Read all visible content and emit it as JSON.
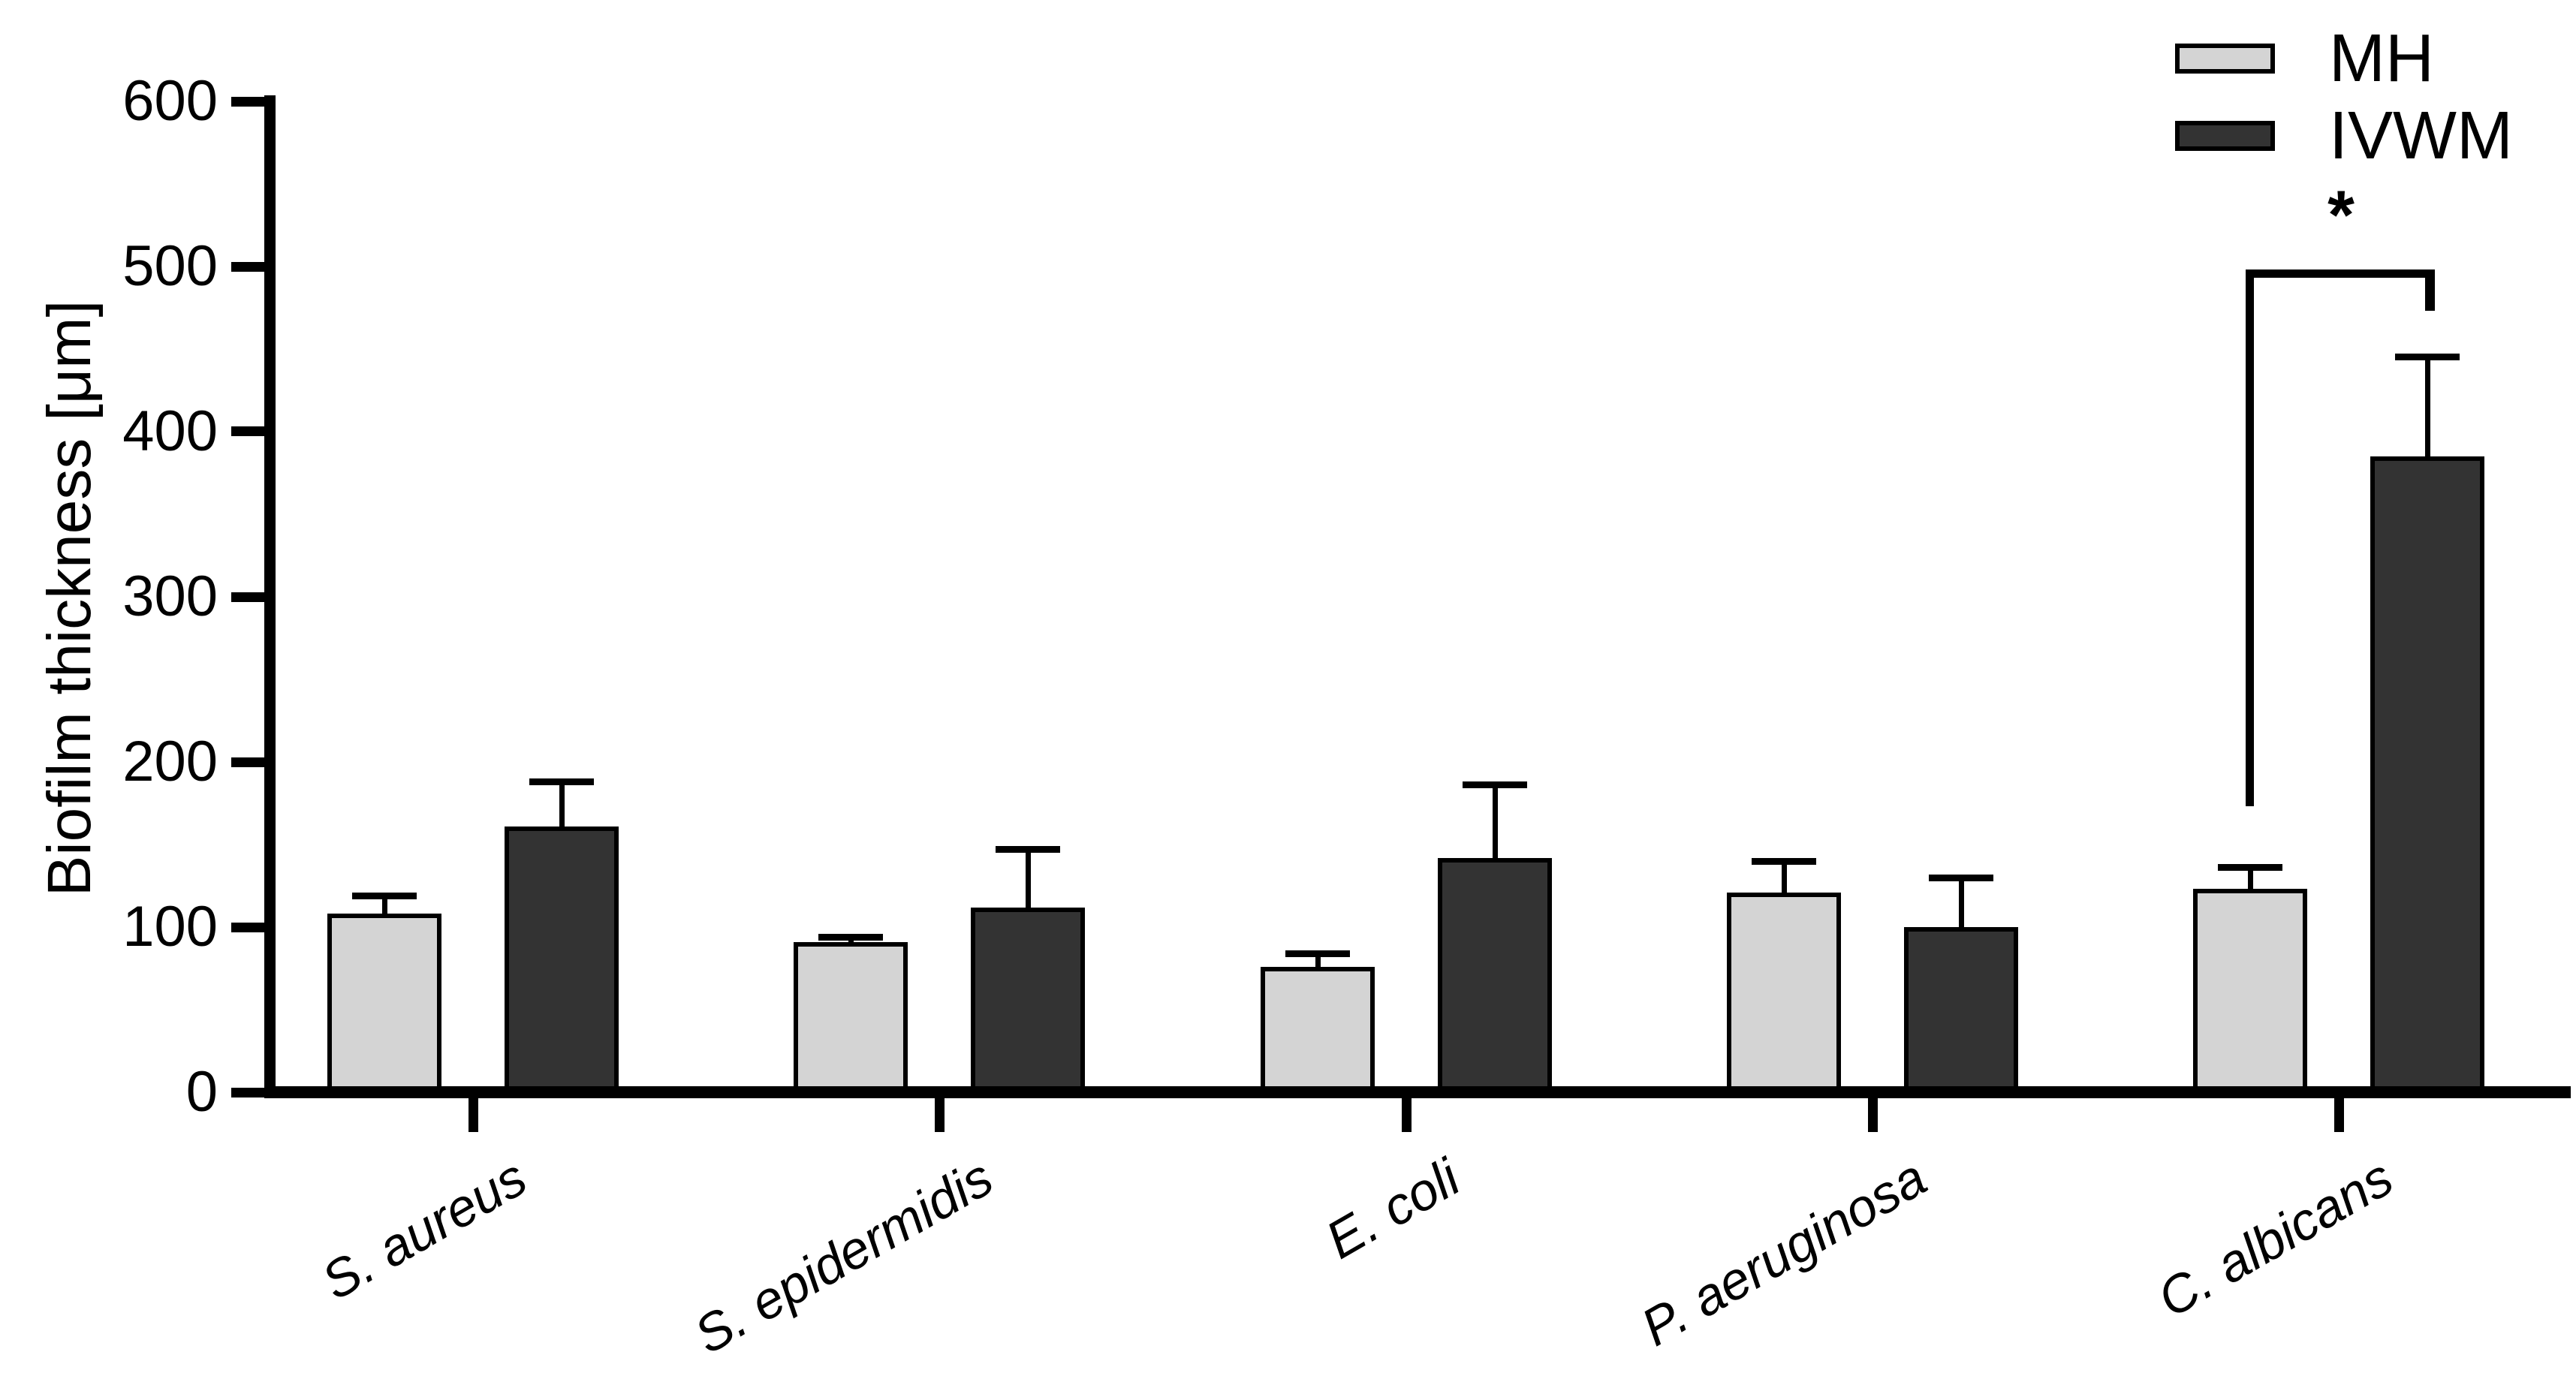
{
  "chart_data": {
    "type": "bar",
    "title": "",
    "xlabel": "",
    "ylabel": "Biofilm thickness [μm]",
    "ylim": [
      0,
      600
    ],
    "y_ticks": [
      0,
      100,
      200,
      300,
      400,
      500,
      600
    ],
    "grid": false,
    "legend_position": "top-right",
    "categories": [
      "S. aureus",
      "S. epidermidis",
      "E. coli",
      "P. aeruginosa",
      "C. albicans"
    ],
    "series": [
      {
        "name": "MH",
        "color": "#d4d4d4",
        "values": [
          108,
          91,
          76,
          121,
          123
        ],
        "errors": [
          11,
          3,
          8,
          19,
          13
        ]
      },
      {
        "name": "IVWM",
        "color": "#333333",
        "values": [
          161,
          112,
          142,
          100,
          385
        ],
        "errors": [
          27,
          35,
          44,
          30,
          60
        ]
      }
    ],
    "significance": {
      "label": "*",
      "category": "C. albicans",
      "between": [
        "MH",
        "IVWM"
      ],
      "bracket_value": 498,
      "left_drop_value": 173,
      "right_drop_value": 473
    }
  },
  "legend": {
    "items": [
      {
        "label": "MH",
        "color": "#d4d4d4"
      },
      {
        "label": "IVWM",
        "color": "#333333"
      }
    ]
  },
  "colors": {
    "axis": "#000000",
    "bar_border": "#000000",
    "mh_fill": "#d4d4d4",
    "ivwm_fill": "#333333",
    "background": "#ffffff"
  }
}
